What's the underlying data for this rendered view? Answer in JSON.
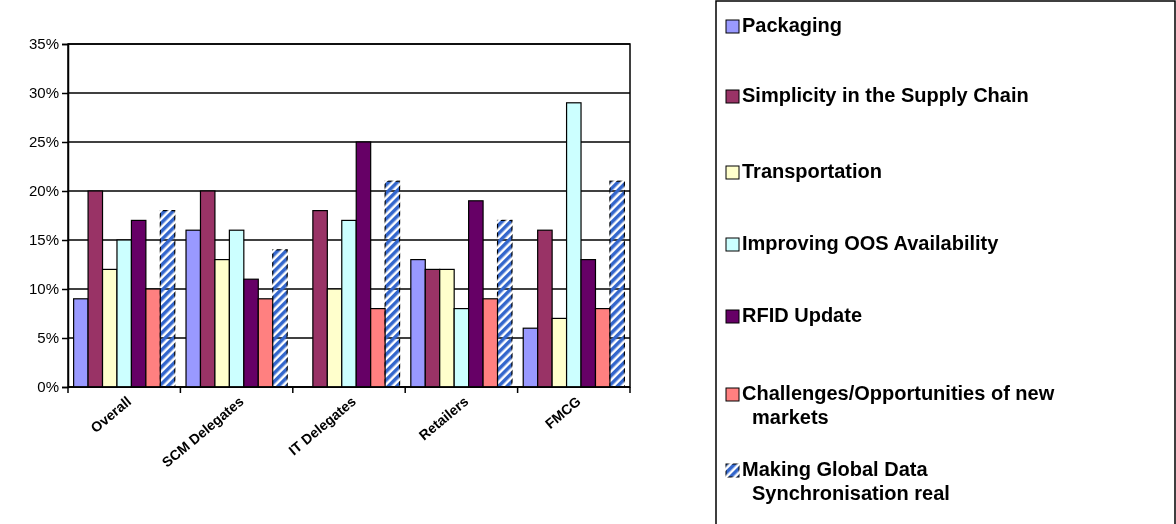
{
  "chart_data": {
    "type": "bar",
    "categories": [
      "Overall",
      "SCM Delegates",
      "IT Delegates",
      "Retailers",
      "FMCG"
    ],
    "series": [
      {
        "name": "Packaging",
        "color": "#9999ff",
        "values": [
          9,
          16,
          null,
          13,
          6
        ]
      },
      {
        "name": "Simplicity in the Supply Chain",
        "color": "#993366",
        "values": [
          20,
          20,
          18,
          12,
          16
        ]
      },
      {
        "name": "Transportation",
        "color": "#ffffcc",
        "values": [
          12,
          13,
          10,
          12,
          7
        ]
      },
      {
        "name": "Improving OOS Availability",
        "color": "#ccffff",
        "values": [
          15,
          16,
          17,
          8,
          29
        ]
      },
      {
        "name": "RFID Update",
        "color": "#660066",
        "values": [
          17,
          11,
          25,
          19,
          13
        ]
      },
      {
        "name": "Challenges/Opportunities of new markets",
        "color": "#ff8080",
        "values": [
          10,
          9,
          8,
          9,
          8
        ]
      },
      {
        "name": "Making Global Data Synchronisation real",
        "color": "#3366cc",
        "values": [
          18,
          14,
          21,
          17,
          21
        ]
      }
    ],
    "ylim": [
      0,
      35
    ],
    "yticks": [
      {
        "value": 0,
        "label": "0%"
      },
      {
        "value": 5,
        "label": "5%"
      },
      {
        "value": 10,
        "label": "10%"
      },
      {
        "value": 15,
        "label": "15%"
      },
      {
        "value": 20,
        "label": "20%"
      },
      {
        "value": 25,
        "label": "25%"
      },
      {
        "value": 30,
        "label": "30%"
      },
      {
        "value": 35,
        "label": "35%"
      }
    ],
    "grid": "y",
    "legend": "right"
  }
}
